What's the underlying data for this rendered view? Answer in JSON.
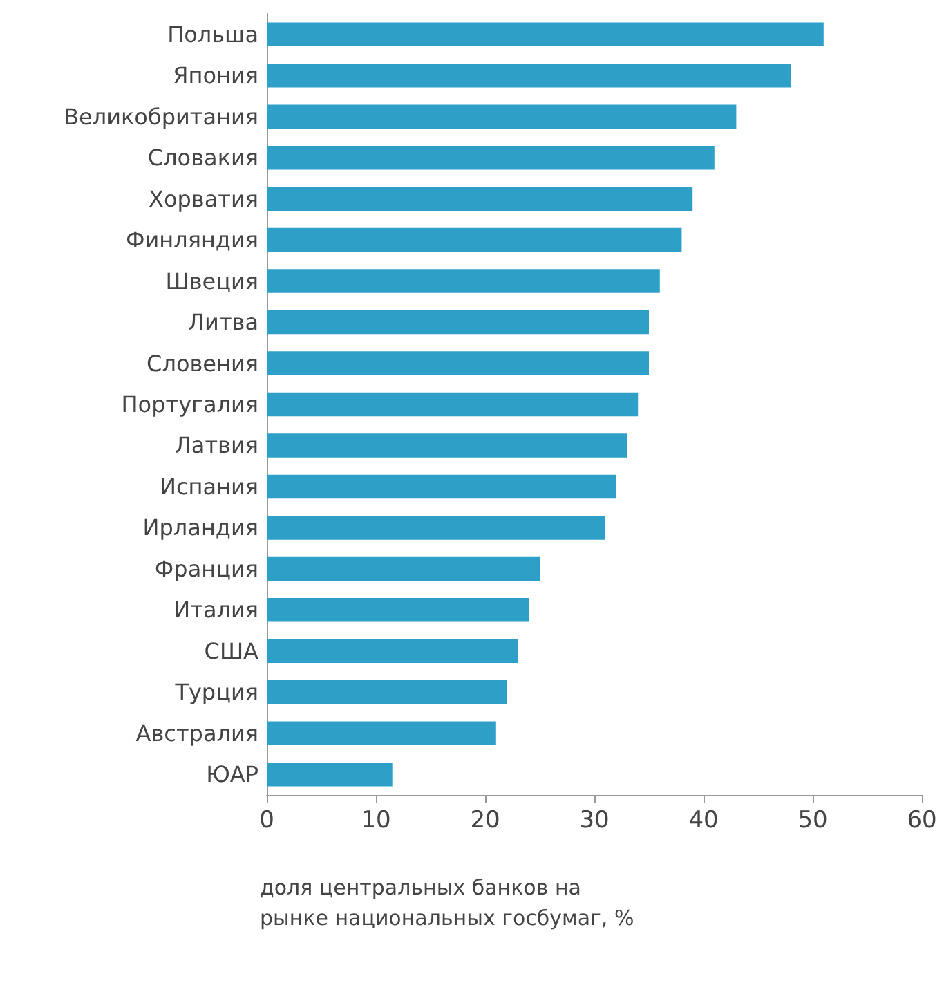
{
  "chart_data": {
    "type": "bar",
    "orientation": "horizontal",
    "categories": [
      "Польша",
      "Япония",
      "Великобритания",
      "Словакия",
      "Хорватия",
      "Финляндия",
      "Швеция",
      "Литва",
      "Словения",
      "Португалия",
      "Латвия",
      "Испания",
      "Ирландия",
      "Франция",
      "Италия",
      "США",
      "Турция",
      "Австралия",
      "ЮАР"
    ],
    "values": [
      51,
      48,
      43,
      41,
      39,
      38,
      36,
      35,
      35,
      34,
      33,
      32,
      31,
      25,
      24,
      23,
      22,
      21,
      11.5
    ],
    "color": "#2e9fc7",
    "xlim": [
      0,
      60
    ],
    "xticks": [
      0,
      10,
      20,
      30,
      40,
      50,
      60
    ],
    "xlabel": "доля центральных банков на рынке национальных госбумаг, %",
    "grid": false
  }
}
